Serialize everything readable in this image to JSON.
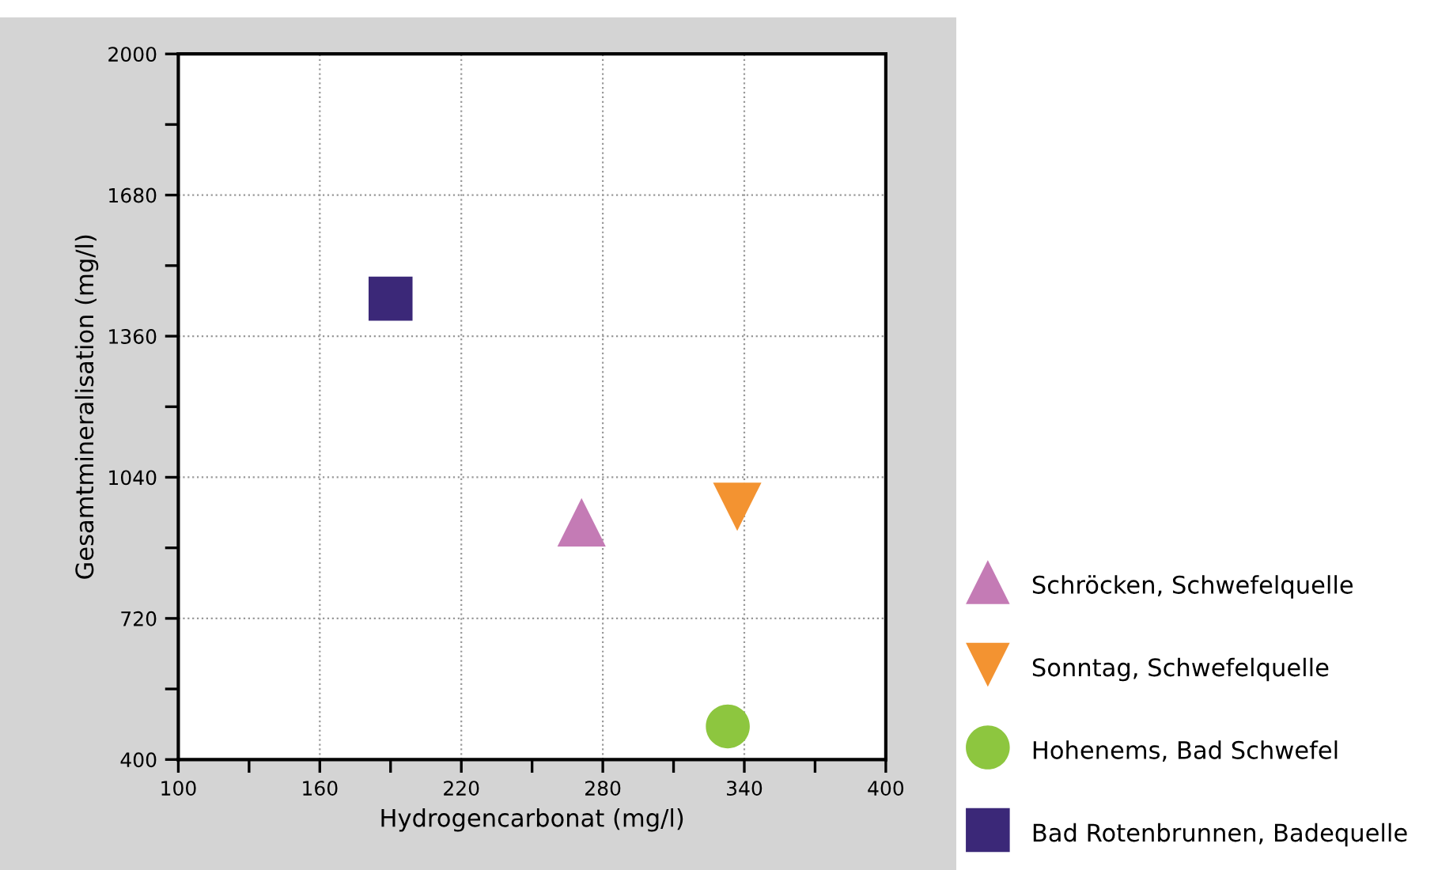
{
  "chart_data": {
    "type": "scatter",
    "xlabel": "Hydrogencarbonat (mg/l)",
    "ylabel": "Gesamtmineralisation (mg/l)",
    "xlim": [
      100,
      400
    ],
    "xticks": [
      100,
      160,
      220,
      280,
      340,
      400
    ],
    "ylim": [
      400,
      2000
    ],
    "yticks": [
      400,
      720,
      1040,
      1360,
      1680,
      2000
    ],
    "grid": true,
    "legend": "right",
    "series": [
      {
        "name": "Schröcken, Schwefelquelle",
        "color": "#c47bb5",
        "marker": "triangle",
        "x": [
          271
        ],
        "values": [
          938
        ]
      },
      {
        "name": "Sonntag, Schwefelquelle",
        "color": "#f39331",
        "marker": "triangle_down",
        "x": [
          337
        ],
        "values": [
          973
        ]
      },
      {
        "name": "Hohenems, Bad Schwefel",
        "color": "#8dc63f",
        "marker": "circle",
        "x": [
          333
        ],
        "values": [
          475
        ]
      },
      {
        "name": "Bad Rotenbrunnen, Badequelle",
        "color": "#3b2878",
        "marker": "square",
        "x": [
          190
        ],
        "values": [
          1445
        ]
      }
    ]
  }
}
